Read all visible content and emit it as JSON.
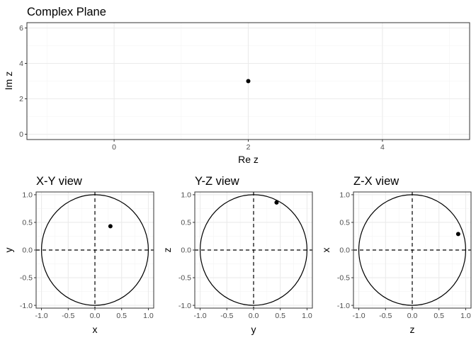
{
  "chart_data": [
    {
      "id": "complex",
      "type": "scatter",
      "title": "Complex Plane",
      "xlabel": "Re z",
      "ylabel": "Im z",
      "xlim": [
        -1.3,
        5.3
      ],
      "ylim": [
        -0.3,
        6.3
      ],
      "xticks": [
        0,
        2,
        4
      ],
      "xtick_labels": [
        "0",
        "2",
        "4"
      ],
      "yticks": [
        0,
        2,
        4,
        6
      ],
      "ytick_labels": [
        "0",
        "2",
        "4",
        "6"
      ],
      "points": [
        {
          "x": 2,
          "y": 3
        }
      ],
      "grid": true
    },
    {
      "id": "xy",
      "type": "scatter",
      "title": "X-Y view",
      "xlabel": "x",
      "ylabel": "y",
      "xlim": [
        -1.1,
        1.1
      ],
      "ylim": [
        -1.05,
        1.05
      ],
      "xticks": [
        -1,
        -0.5,
        0,
        0.5,
        1
      ],
      "xtick_labels": [
        "-1.0",
        "-0.5",
        "0.0",
        "0.5",
        "1.0"
      ],
      "yticks": [
        -1,
        -0.5,
        0,
        0.5,
        1
      ],
      "ytick_labels": [
        "-1.0",
        "-0.5",
        "0.0",
        "0.5",
        "1.0"
      ],
      "unit_circle": true,
      "dashed_axes": true,
      "points": [
        {
          "x": 0.29,
          "y": 0.43
        }
      ],
      "grid": true
    },
    {
      "id": "yz",
      "type": "scatter",
      "title": "Y-Z view",
      "xlabel": "y",
      "ylabel": "z",
      "xlim": [
        -1.1,
        1.1
      ],
      "ylim": [
        -1.05,
        1.05
      ],
      "xticks": [
        -1,
        -0.5,
        0,
        0.5,
        1
      ],
      "xtick_labels": [
        "-1.0",
        "-0.5",
        "0.0",
        "0.5",
        "1.0"
      ],
      "yticks": [
        -1,
        -0.5,
        0,
        0.5,
        1
      ],
      "ytick_labels": [
        "-1.0",
        "-0.5",
        "0.0",
        "0.5",
        "1.0"
      ],
      "unit_circle": true,
      "dashed_axes": true,
      "points": [
        {
          "x": 0.43,
          "y": 0.86
        }
      ],
      "grid": true
    },
    {
      "id": "zx",
      "type": "scatter",
      "title": "Z-X view",
      "xlabel": "z",
      "ylabel": "x",
      "xlim": [
        -1.1,
        1.1
      ],
      "ylim": [
        -1.05,
        1.05
      ],
      "xticks": [
        -1,
        -0.5,
        0,
        0.5,
        1
      ],
      "xtick_labels": [
        "-1.0",
        "-0.5",
        "0.0",
        "0.5",
        "1.0"
      ],
      "yticks": [
        -1,
        -0.5,
        0,
        0.5,
        1
      ],
      "ytick_labels": [
        "-1.0",
        "-0.5",
        "0.0",
        "0.5",
        "1.0"
      ],
      "unit_circle": true,
      "dashed_axes": true,
      "points": [
        {
          "x": 0.86,
          "y": 0.29
        }
      ],
      "grid": true
    }
  ],
  "colors": {
    "point": "#000000",
    "circle": "#000000",
    "grid_major": "#ebebeb",
    "grid_minor": "#f4f4f4",
    "border": "#333333",
    "tick_text": "#4d4d4d"
  }
}
